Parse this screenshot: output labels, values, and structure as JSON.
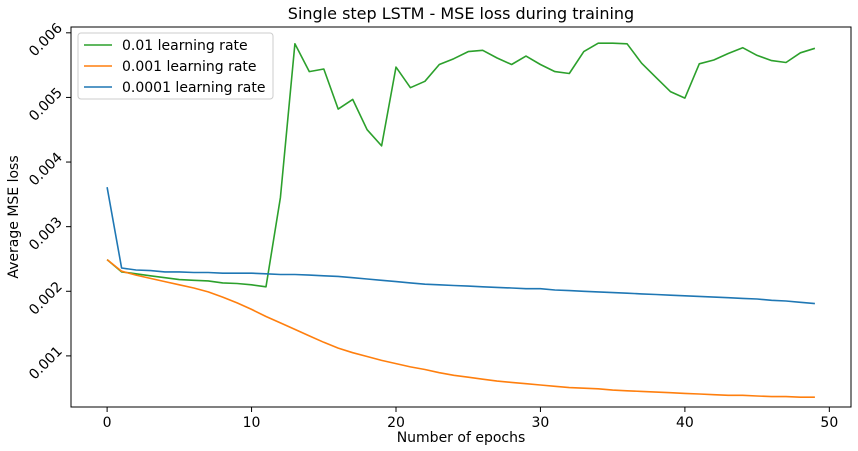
{
  "chart_data": {
    "type": "line",
    "title": "Single step LSTM - MSE loss during training",
    "xlabel": "Number of epochs",
    "ylabel": "Average MSE loss",
    "xlim": [
      -2.5,
      51.5
    ],
    "ylim": [
      0.000209,
      0.00609
    ],
    "xticks": [
      0,
      10,
      20,
      30,
      40,
      50
    ],
    "xtick_labels": [
      "0",
      "10",
      "20",
      "30",
      "40",
      "50"
    ],
    "yticks": [
      0.001,
      0.002,
      0.003,
      0.004,
      0.005,
      0.006
    ],
    "ytick_labels": [
      "0.001",
      "0.002",
      "0.003",
      "0.004",
      "0.005",
      "0.006"
    ],
    "legend_position": "top-left",
    "grid": false,
    "x": [
      0,
      1,
      2,
      3,
      4,
      5,
      6,
      7,
      8,
      9,
      10,
      11,
      12,
      13,
      14,
      15,
      16,
      17,
      18,
      19,
      20,
      21,
      22,
      23,
      24,
      25,
      26,
      27,
      28,
      29,
      30,
      31,
      32,
      33,
      34,
      35,
      36,
      37,
      38,
      39,
      40,
      41,
      42,
      43,
      44,
      45,
      46,
      47,
      48,
      49
    ],
    "series": [
      {
        "name": "0.01 learning rate",
        "color": "#2ca02c",
        "values": [
          0.00249,
          0.0023,
          0.00227,
          0.00224,
          0.00221,
          0.00218,
          0.00217,
          0.00216,
          0.00213,
          0.00212,
          0.0021,
          0.00207,
          0.00345,
          0.00583,
          0.0054,
          0.00544,
          0.00482,
          0.00497,
          0.0045,
          0.00425,
          0.00547,
          0.00515,
          0.00525,
          0.00551,
          0.0056,
          0.00571,
          0.00573,
          0.00561,
          0.00551,
          0.00564,
          0.00551,
          0.0054,
          0.00537,
          0.00571,
          0.00584,
          0.00584,
          0.00583,
          0.00553,
          0.00531,
          0.00509,
          0.00499,
          0.00552,
          0.00558,
          0.00568,
          0.00577,
          0.00565,
          0.00557,
          0.00554,
          0.00569,
          0.00576
        ]
      },
      {
        "name": "0.001 learning rate",
        "color": "#ff7f0e",
        "values": [
          0.00249,
          0.00231,
          0.00225,
          0.0022,
          0.00215,
          0.0021,
          0.00205,
          0.00199,
          0.00191,
          0.00182,
          0.00172,
          0.00161,
          0.00151,
          0.00141,
          0.00131,
          0.00121,
          0.00112,
          0.00105,
          0.00099,
          0.00093,
          0.00088,
          0.00083,
          0.00079,
          0.00074,
          0.0007,
          0.00067,
          0.00064,
          0.00061,
          0.00059,
          0.00057,
          0.00055,
          0.00053,
          0.00051,
          0.0005,
          0.00049,
          0.00047,
          0.00046,
          0.00045,
          0.00044,
          0.00043,
          0.00042,
          0.00041,
          0.0004,
          0.00039,
          0.00039,
          0.00038,
          0.00037,
          0.00037,
          0.00036,
          0.00036
        ]
      },
      {
        "name": "0.0001 learning rate",
        "color": "#1f77b4",
        "values": [
          0.00361,
          0.00236,
          0.00233,
          0.00232,
          0.0023,
          0.0023,
          0.00229,
          0.00229,
          0.00228,
          0.00228,
          0.00228,
          0.00227,
          0.00226,
          0.00226,
          0.00225,
          0.00224,
          0.00223,
          0.00221,
          0.00219,
          0.00217,
          0.00215,
          0.00213,
          0.00211,
          0.0021,
          0.00209,
          0.00208,
          0.00207,
          0.00206,
          0.00205,
          0.00204,
          0.00204,
          0.00202,
          0.00201,
          0.002,
          0.00199,
          0.00198,
          0.00197,
          0.00196,
          0.00195,
          0.00194,
          0.00193,
          0.00192,
          0.00191,
          0.0019,
          0.00189,
          0.00188,
          0.00186,
          0.00185,
          0.00183,
          0.00181
        ]
      }
    ]
  }
}
